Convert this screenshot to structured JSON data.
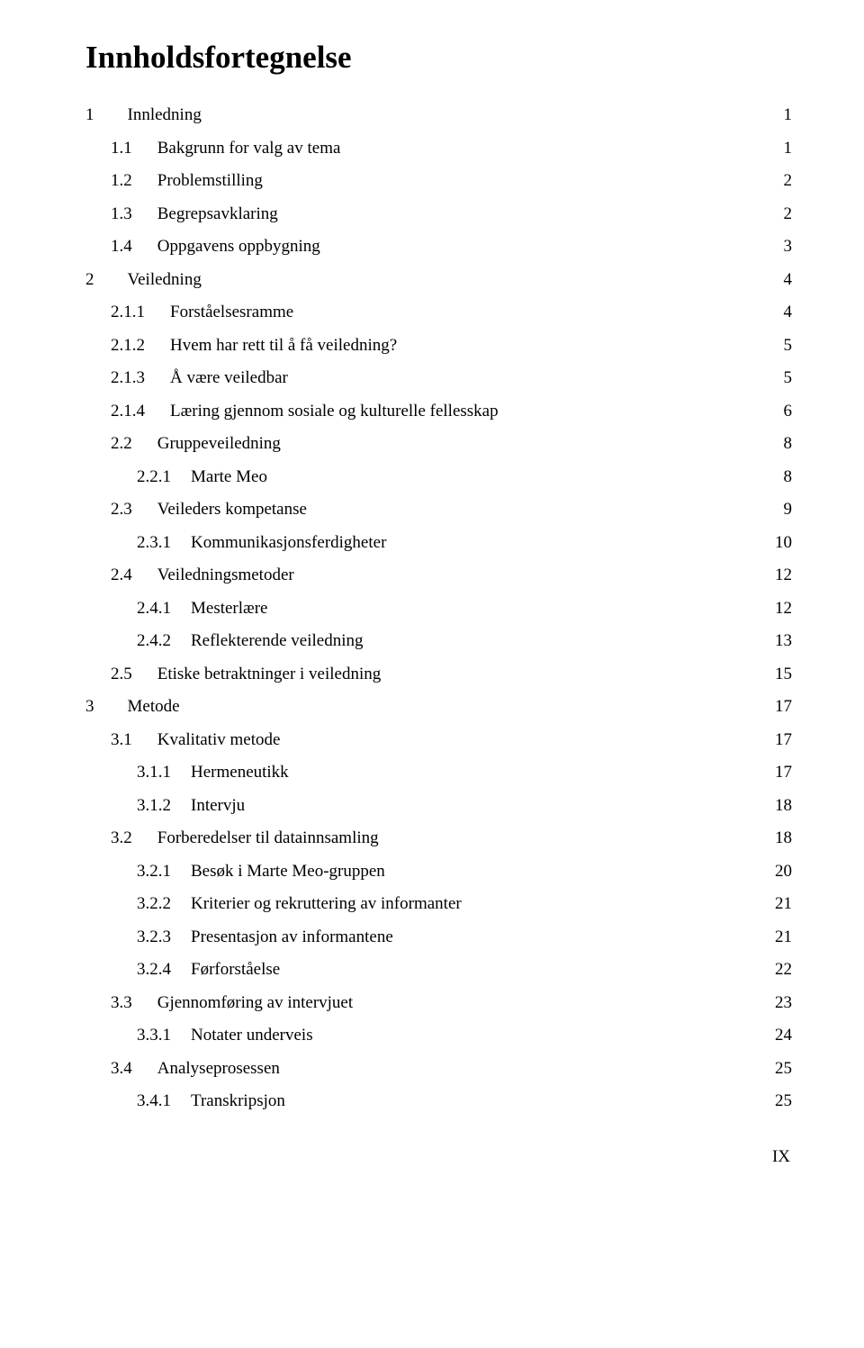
{
  "title": "Innholdsfortegnelse",
  "page_number": "IX",
  "entries": [
    {
      "level": 0,
      "num": "1",
      "text": "Innledning",
      "page": "1"
    },
    {
      "level": 1,
      "num": "1.1",
      "text": "Bakgrunn for valg av tema",
      "page": "1"
    },
    {
      "level": 1,
      "num": "1.2",
      "text": "Problemstilling",
      "page": "2"
    },
    {
      "level": 1,
      "num": "1.3",
      "text": "Begrepsavklaring",
      "page": "2"
    },
    {
      "level": 1,
      "num": "1.4",
      "text": "Oppgavens oppbygning",
      "page": "3"
    },
    {
      "level": 0,
      "num": "2",
      "text": "Veiledning",
      "page": "4"
    },
    {
      "level": 1,
      "num": "2.1.1",
      "text": "Forståelsesramme",
      "page": "4"
    },
    {
      "level": 1,
      "num": "2.1.2",
      "text": "Hvem har rett til å få veiledning?",
      "page": "5"
    },
    {
      "level": 1,
      "num": "2.1.3",
      "text": "Å være veiledbar",
      "page": "5"
    },
    {
      "level": 1,
      "num": "2.1.4",
      "text": "Læring gjennom sosiale og kulturelle fellesskap",
      "page": "6"
    },
    {
      "level": 1,
      "num": "2.2",
      "text": "Gruppeveiledning",
      "page": "8"
    },
    {
      "level": 2,
      "num": "2.2.1",
      "text": "Marte Meo",
      "page": "8"
    },
    {
      "level": 1,
      "num": "2.3",
      "text": "Veileders kompetanse",
      "page": "9"
    },
    {
      "level": 2,
      "num": "2.3.1",
      "text": "Kommunikasjonsferdigheter",
      "page": "10"
    },
    {
      "level": 1,
      "num": "2.4",
      "text": "Veiledningsmetoder",
      "page": "12"
    },
    {
      "level": 2,
      "num": "2.4.1",
      "text": "Mesterlære",
      "page": "12"
    },
    {
      "level": 2,
      "num": "2.4.2",
      "text": "Reflekterende veiledning",
      "page": "13"
    },
    {
      "level": 1,
      "num": "2.5",
      "text": "Etiske betraktninger i veiledning",
      "page": "15"
    },
    {
      "level": 0,
      "num": "3",
      "text": "Metode",
      "page": "17"
    },
    {
      "level": 1,
      "num": "3.1",
      "text": "Kvalitativ metode",
      "page": "17"
    },
    {
      "level": 2,
      "num": "3.1.1",
      "text": "Hermeneutikk",
      "page": "17"
    },
    {
      "level": 2,
      "num": "3.1.2",
      "text": "Intervju",
      "page": "18"
    },
    {
      "level": 1,
      "num": "3.2",
      "text": "Forberedelser til datainnsamling",
      "page": "18"
    },
    {
      "level": 2,
      "num": "3.2.1",
      "text": "Besøk i Marte Meo-gruppen",
      "page": "20"
    },
    {
      "level": 2,
      "num": "3.2.2",
      "text": "Kriterier og rekruttering av informanter",
      "page": "21"
    },
    {
      "level": 2,
      "num": "3.2.3",
      "text": "Presentasjon av informantene",
      "page": "21"
    },
    {
      "level": 2,
      "num": "3.2.4",
      "text": "Førforståelse",
      "page": "22"
    },
    {
      "level": 1,
      "num": "3.3",
      "text": "Gjennomføring av intervjuet",
      "page": "23"
    },
    {
      "level": 2,
      "num": "3.3.1",
      "text": "Notater underveis",
      "page": "24"
    },
    {
      "level": 1,
      "num": "3.4",
      "text": "Analyseprosessen",
      "page": "25"
    },
    {
      "level": 2,
      "num": "3.4.1",
      "text": "Transkripsjon",
      "page": "25"
    }
  ]
}
